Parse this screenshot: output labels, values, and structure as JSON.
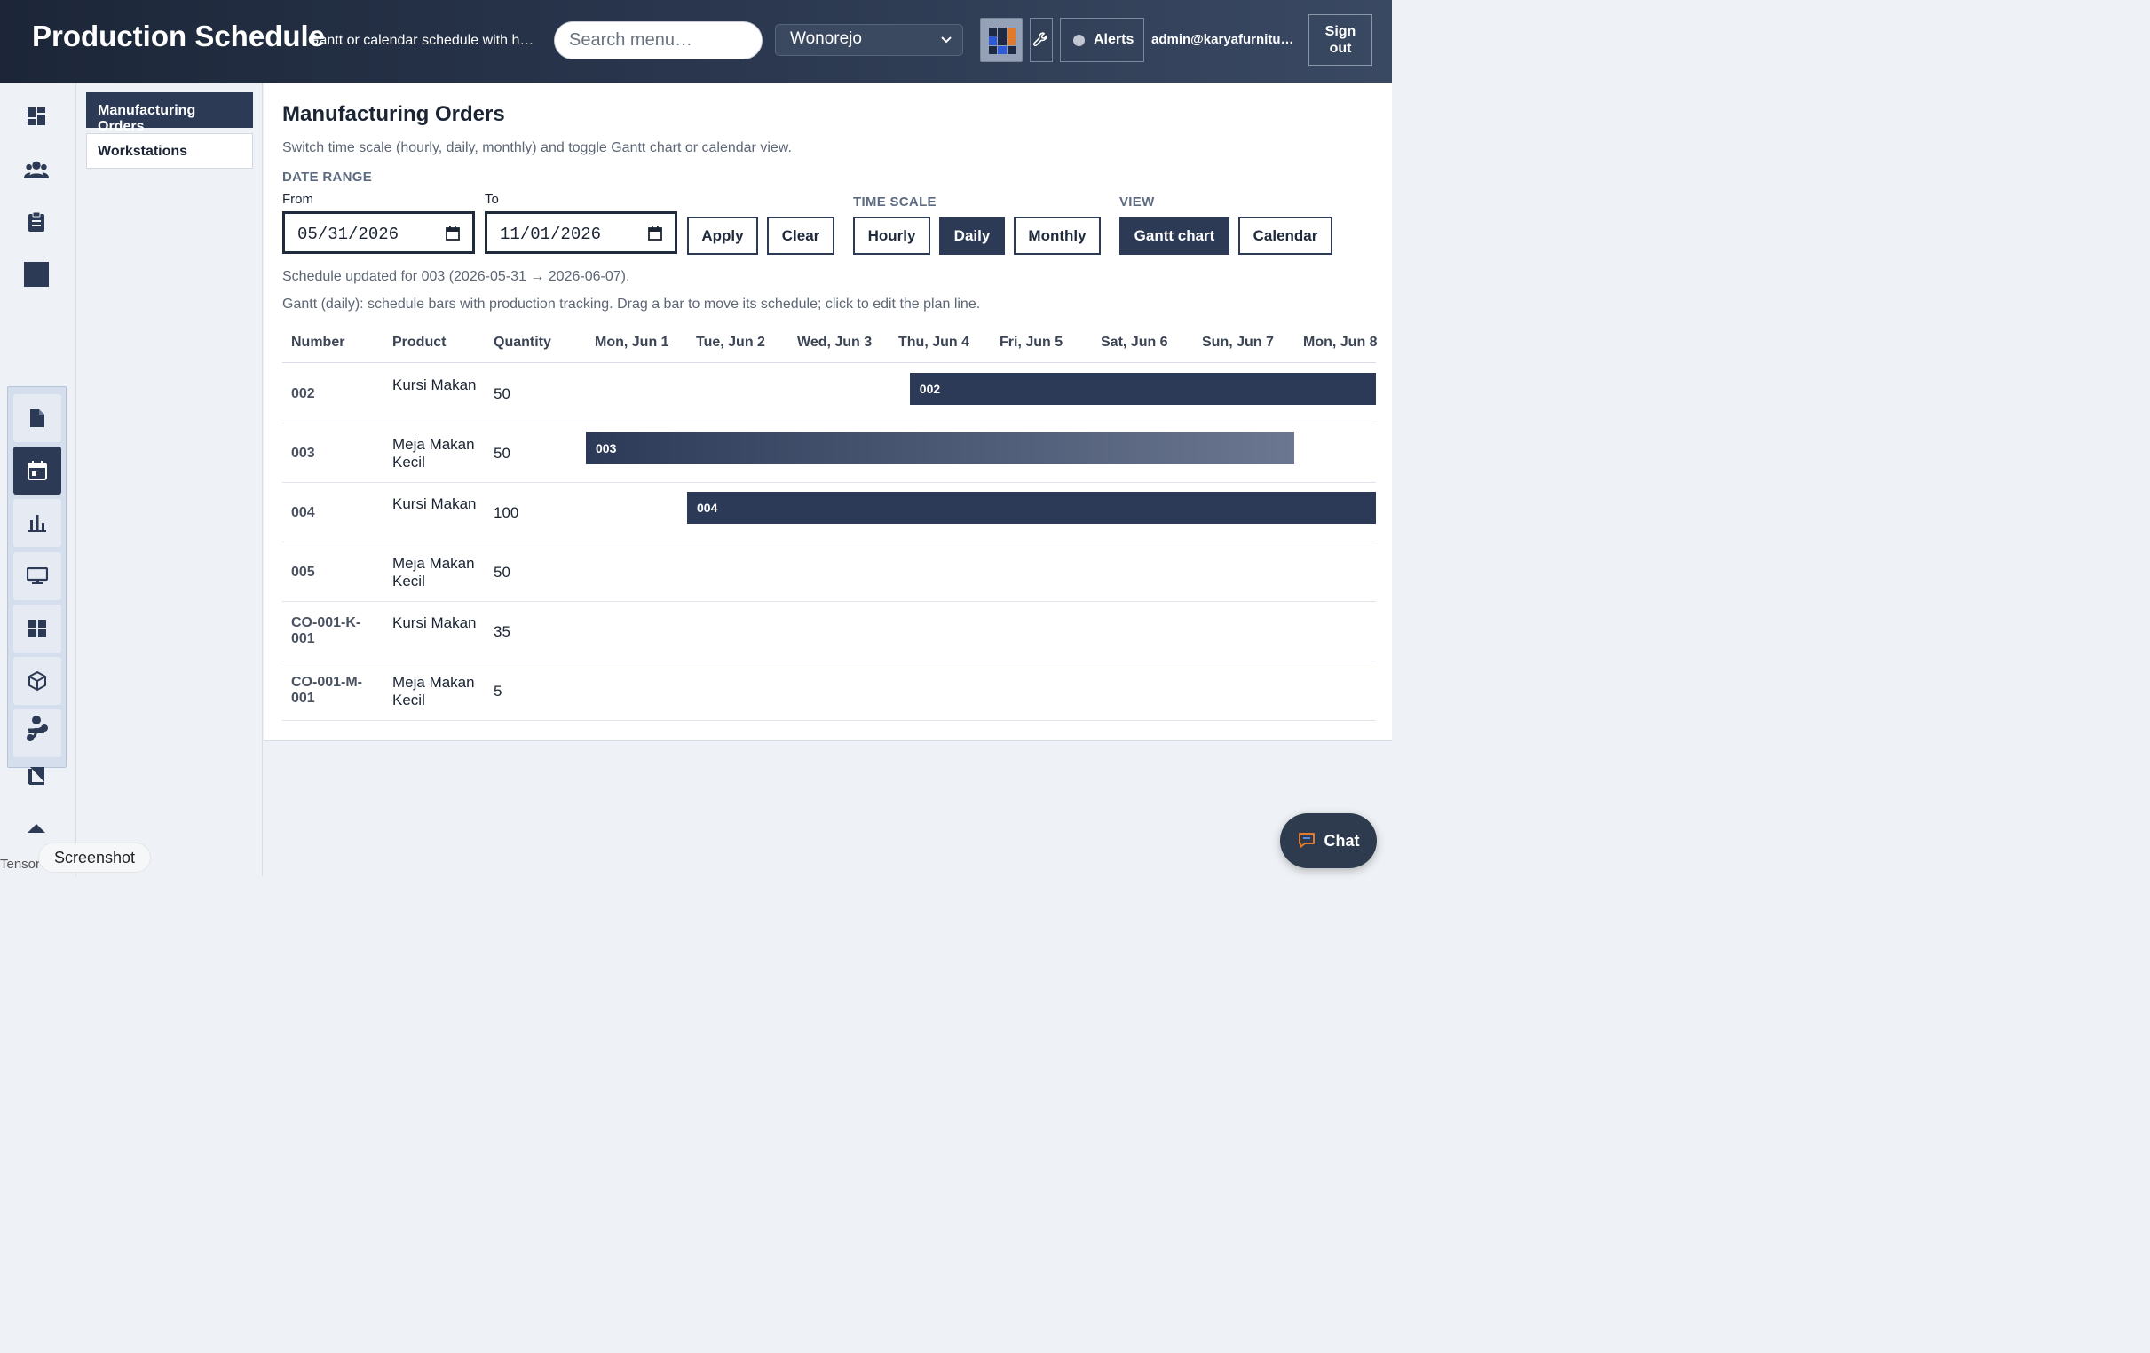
{
  "header": {
    "title": "Production Schedule",
    "subtitle": "Gantt or calendar schedule with ho…",
    "search_placeholder": "Search menu…",
    "location": "Wonorejo",
    "alerts_label": "Alerts",
    "user_email": "admin@karyafurnitur....",
    "signout_label": "Sign out"
  },
  "rail": {
    "icons": [
      "dashboard-icon",
      "users-icon",
      "clipboard-icon",
      "square-icon",
      "document-icon",
      "calendar-icon",
      "bar-chart-icon",
      "monitor-icon",
      "grid-icon",
      "cube-icon",
      "route-icon",
      "person-icon",
      "book-icon",
      "chevron-up-icon"
    ],
    "active": "calendar-icon"
  },
  "subnav": {
    "items": [
      {
        "label": "Manufacturing Orders",
        "active": true
      },
      {
        "label": "Workstations",
        "active": false
      }
    ]
  },
  "main": {
    "title": "Manufacturing Orders",
    "description": "Switch time scale (hourly, daily, monthly) and toggle Gantt chart or calendar view.",
    "date_range_label": "DATE RANGE",
    "from_label": "From",
    "from_value": "05/31/2026",
    "to_label": "To",
    "to_value": "11/01/2026",
    "apply_label": "Apply",
    "clear_label": "Clear",
    "time_scale_label": "TIME SCALE",
    "time_scales": [
      "Hourly",
      "Daily",
      "Monthly"
    ],
    "time_scale_selected": "Daily",
    "view_label": "VIEW",
    "views": [
      "Gantt chart",
      "Calendar"
    ],
    "view_selected": "Gantt chart",
    "status": "Schedule updated for 003 (2026-05-31 → 2026-06-07).",
    "gantt_hint": "Gantt (daily): schedule bars with production tracking. Drag a bar to move its schedule; click to edit the plan line."
  },
  "gantt": {
    "columns": [
      "Number",
      "Product",
      "Quantity"
    ],
    "days": [
      "Mon, Jun 1",
      "Tue, Jun 2",
      "Wed, Jun 3",
      "Thu, Jun 4",
      "Fri, Jun 5",
      "Sat, Jun 6",
      "Sun, Jun 7",
      "Mon, Jun 8"
    ],
    "rows": [
      {
        "number": "002",
        "product": "Kursi Makan",
        "quantity": "50",
        "bar": {
          "label": "002",
          "start_day": 3.2,
          "end_day": 8.0,
          "progress": 1.0
        }
      },
      {
        "number": "003",
        "product": "Meja Makan Kecil",
        "quantity": "50",
        "bar": {
          "label": "003",
          "start_day": 0.0,
          "end_day": 7.0,
          "progress": 0.0
        }
      },
      {
        "number": "004",
        "product": "Kursi Makan",
        "quantity": "100",
        "bar": {
          "label": "004",
          "start_day": 1.0,
          "end_day": 8.0,
          "progress": 1.0
        }
      },
      {
        "number": "005",
        "product": "Meja Makan Kecil",
        "quantity": "50",
        "bar": null
      },
      {
        "number": "CO-001-K-001",
        "product": "Kursi Makan",
        "quantity": "35",
        "bar": null
      },
      {
        "number": "CO-001-M-001",
        "product": "Meja Makan Kecil",
        "quantity": "5",
        "bar": null
      }
    ]
  },
  "floating": {
    "chat_label": "Chat",
    "screenshot_label": "Screenshot",
    "tensor_text": "Tensor"
  },
  "colors": {
    "header_bg": "#1c2638",
    "accent": "#2c3a55",
    "bar": "#2c3a58",
    "bar_faded": "#6b7790"
  }
}
